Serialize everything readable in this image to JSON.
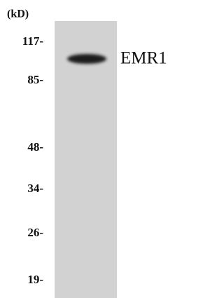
{
  "unit_label": "(kD)",
  "markers": [
    "117-",
    "85-",
    "48-",
    "34-",
    "26-",
    "19-"
  ],
  "band_label": "EMR1"
}
